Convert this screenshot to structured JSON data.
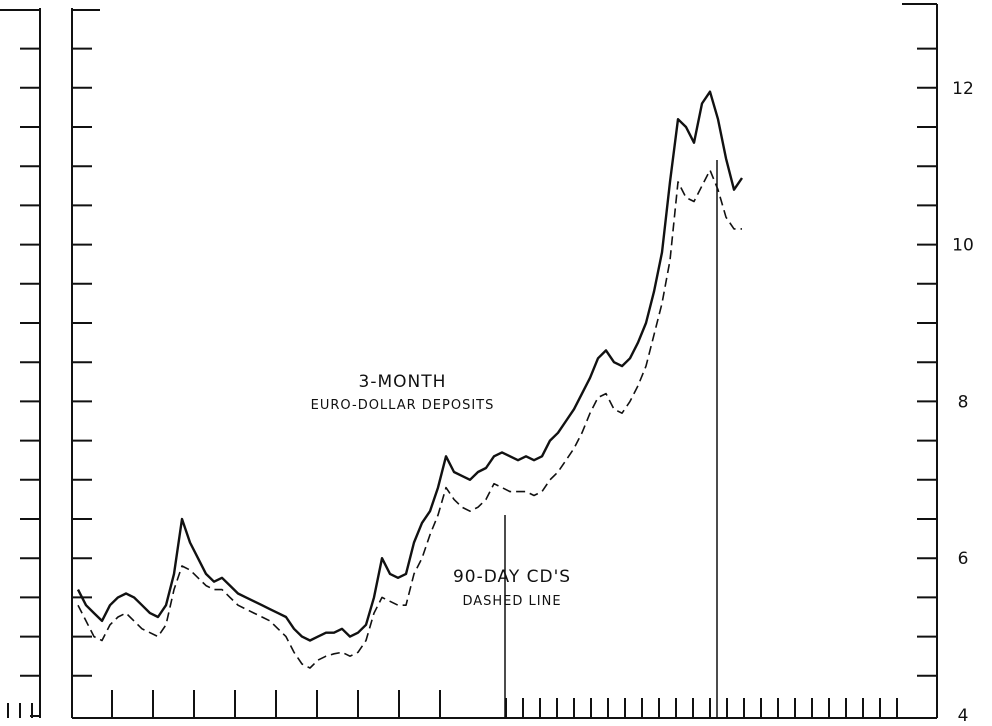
{
  "chart_data": {
    "type": "line",
    "y_right_ticks": [
      "12",
      "10",
      "8",
      "6",
      "4"
    ],
    "ylim": [
      4,
      13
    ],
    "grid": false,
    "annotations": {
      "euro_line1": "3-MONTH",
      "euro_line2": "EURO-DOLLAR DEPOSITS",
      "cd_line1": "90-DAY CD'S",
      "cd_line2": "DASHED LINE"
    },
    "series": [
      {
        "name": "3-MONTH EURO-DOLLAR DEPOSITS",
        "style": "solid",
        "points": [
          [
            0,
            5.6
          ],
          [
            1,
            5.4
          ],
          [
            2,
            5.3
          ],
          [
            3,
            5.2
          ],
          [
            4,
            5.4
          ],
          [
            5,
            5.5
          ],
          [
            6,
            5.55
          ],
          [
            7,
            5.5
          ],
          [
            8,
            5.4
          ],
          [
            9,
            5.3
          ],
          [
            10,
            5.25
          ],
          [
            11,
            5.4
          ],
          [
            12,
            5.8
          ],
          [
            13,
            6.5
          ],
          [
            14,
            6.2
          ],
          [
            15,
            6.0
          ],
          [
            16,
            5.8
          ],
          [
            17,
            5.7
          ],
          [
            18,
            5.75
          ],
          [
            19,
            5.65
          ],
          [
            20,
            5.55
          ],
          [
            21,
            5.5
          ],
          [
            22,
            5.45
          ],
          [
            23,
            5.4
          ],
          [
            24,
            5.35
          ],
          [
            25,
            5.3
          ],
          [
            26,
            5.25
          ],
          [
            27,
            5.1
          ],
          [
            28,
            5.0
          ],
          [
            29,
            4.95
          ],
          [
            30,
            5.0
          ],
          [
            31,
            5.05
          ],
          [
            32,
            5.05
          ],
          [
            33,
            5.1
          ],
          [
            34,
            5.0
          ],
          [
            35,
            5.05
          ],
          [
            36,
            5.15
          ],
          [
            37,
            5.5
          ],
          [
            38,
            6.0
          ],
          [
            39,
            5.8
          ],
          [
            40,
            5.75
          ],
          [
            41,
            5.8
          ],
          [
            42,
            6.2
          ],
          [
            43,
            6.45
          ],
          [
            44,
            6.6
          ],
          [
            45,
            6.9
          ],
          [
            46,
            7.3
          ],
          [
            47,
            7.1
          ],
          [
            48,
            7.05
          ],
          [
            49,
            7.0
          ],
          [
            50,
            7.1
          ],
          [
            51,
            7.15
          ],
          [
            52,
            7.3
          ],
          [
            53,
            7.35
          ],
          [
            54,
            7.3
          ],
          [
            55,
            7.25
          ],
          [
            56,
            7.3
          ],
          [
            57,
            7.25
          ],
          [
            58,
            7.3
          ],
          [
            59,
            7.5
          ],
          [
            60,
            7.6
          ],
          [
            61,
            7.75
          ],
          [
            62,
            7.9
          ],
          [
            63,
            8.1
          ],
          [
            64,
            8.3
          ],
          [
            65,
            8.55
          ],
          [
            66,
            8.65
          ],
          [
            67,
            8.5
          ],
          [
            68,
            8.45
          ],
          [
            69,
            8.55
          ],
          [
            70,
            8.75
          ],
          [
            71,
            9.0
          ],
          [
            72,
            9.4
          ],
          [
            73,
            9.9
          ],
          [
            74,
            10.8
          ],
          [
            75,
            11.6
          ],
          [
            76,
            11.5
          ],
          [
            77,
            11.3
          ],
          [
            78,
            11.8
          ],
          [
            79,
            11.95
          ],
          [
            80,
            11.6
          ],
          [
            81,
            11.1
          ],
          [
            82,
            10.7
          ],
          [
            83,
            10.85
          ]
        ]
      },
      {
        "name": "90-DAY CD'S",
        "style": "dashed",
        "points": [
          [
            0,
            5.4
          ],
          [
            1,
            5.2
          ],
          [
            2,
            5.0
          ],
          [
            3,
            4.95
          ],
          [
            4,
            5.15
          ],
          [
            5,
            5.25
          ],
          [
            6,
            5.3
          ],
          [
            7,
            5.2
          ],
          [
            8,
            5.1
          ],
          [
            9,
            5.05
          ],
          [
            10,
            5.0
          ],
          [
            11,
            5.15
          ],
          [
            12,
            5.6
          ],
          [
            13,
            5.9
          ],
          [
            14,
            5.85
          ],
          [
            15,
            5.75
          ],
          [
            16,
            5.65
          ],
          [
            17,
            5.6
          ],
          [
            18,
            5.6
          ],
          [
            19,
            5.5
          ],
          [
            20,
            5.4
          ],
          [
            21,
            5.35
          ],
          [
            22,
            5.3
          ],
          [
            23,
            5.25
          ],
          [
            24,
            5.2
          ],
          [
            25,
            5.1
          ],
          [
            26,
            5.0
          ],
          [
            27,
            4.8
          ],
          [
            28,
            4.65
          ],
          [
            29,
            4.6
          ],
          [
            30,
            4.7
          ],
          [
            31,
            4.75
          ],
          [
            32,
            4.78
          ],
          [
            33,
            4.8
          ],
          [
            34,
            4.75
          ],
          [
            35,
            4.8
          ],
          [
            36,
            4.95
          ],
          [
            37,
            5.3
          ],
          [
            38,
            5.5
          ],
          [
            39,
            5.45
          ],
          [
            40,
            5.4
          ],
          [
            41,
            5.4
          ],
          [
            42,
            5.8
          ],
          [
            43,
            6.0
          ],
          [
            44,
            6.3
          ],
          [
            45,
            6.55
          ],
          [
            46,
            6.9
          ],
          [
            47,
            6.75
          ],
          [
            48,
            6.65
          ],
          [
            49,
            6.6
          ],
          [
            50,
            6.65
          ],
          [
            51,
            6.75
          ],
          [
            52,
            6.95
          ],
          [
            53,
            6.9
          ],
          [
            54,
            6.85
          ],
          [
            55,
            6.85
          ],
          [
            56,
            6.85
          ],
          [
            57,
            6.8
          ],
          [
            58,
            6.85
          ],
          [
            59,
            7.0
          ],
          [
            60,
            7.1
          ],
          [
            61,
            7.25
          ],
          [
            62,
            7.4
          ],
          [
            63,
            7.6
          ],
          [
            64,
            7.85
          ],
          [
            65,
            8.05
          ],
          [
            66,
            8.1
          ],
          [
            67,
            7.9
          ],
          [
            68,
            7.85
          ],
          [
            69,
            8.0
          ],
          [
            70,
            8.2
          ],
          [
            71,
            8.45
          ],
          [
            72,
            8.85
          ],
          [
            73,
            9.25
          ],
          [
            74,
            9.8
          ],
          [
            75,
            10.8
          ],
          [
            76,
            10.6
          ],
          [
            77,
            10.55
          ],
          [
            78,
            10.75
          ],
          [
            79,
            10.95
          ],
          [
            80,
            10.7
          ],
          [
            81,
            10.35
          ],
          [
            82,
            10.2
          ],
          [
            83,
            10.2
          ]
        ]
      }
    ]
  }
}
